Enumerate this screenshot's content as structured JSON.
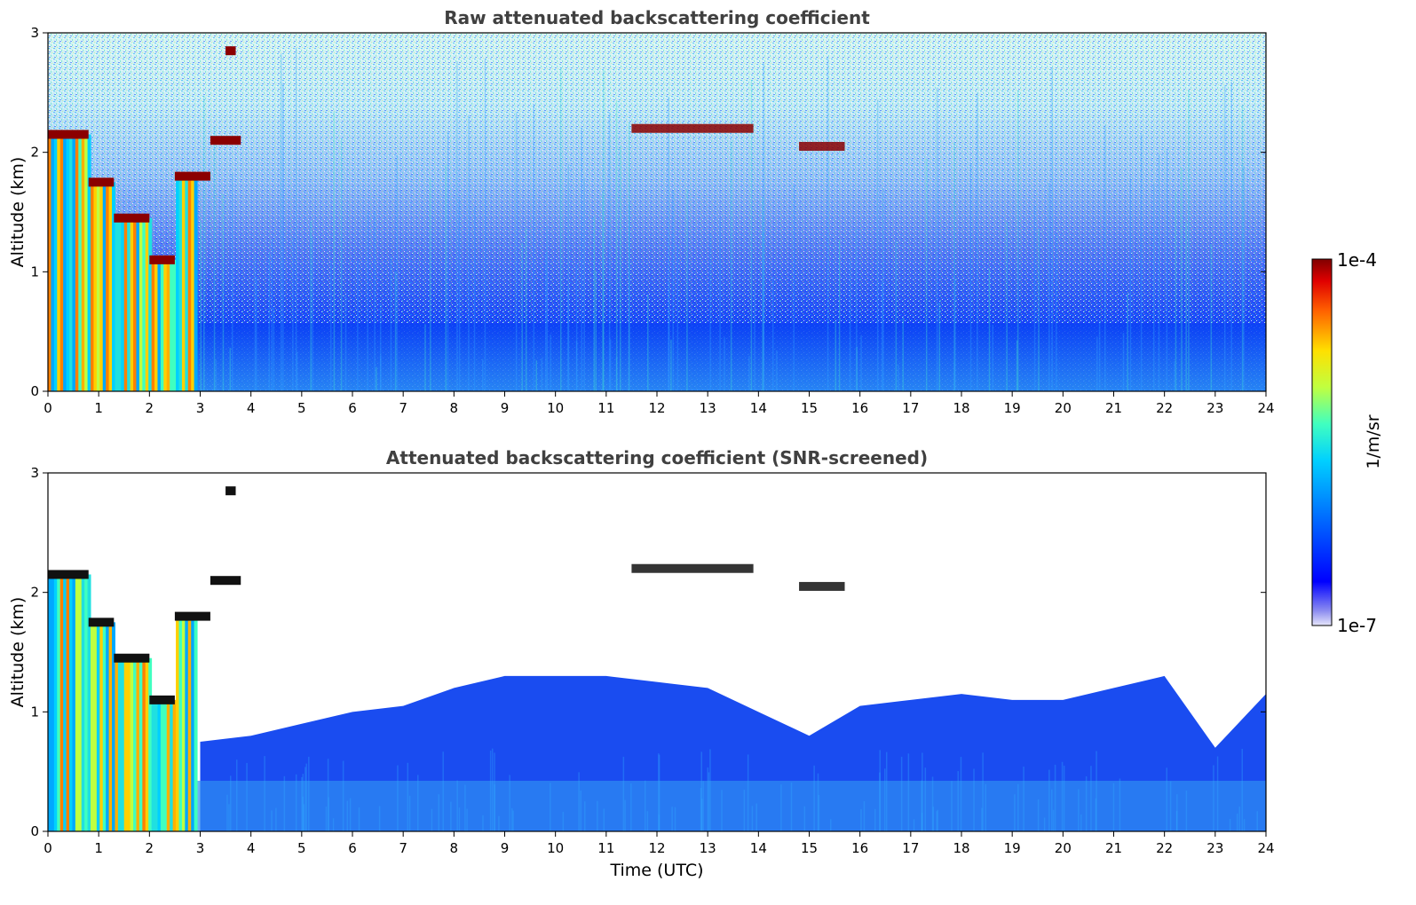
{
  "chart_data": [
    {
      "type": "heatmap",
      "title": "Raw attenuated backscattering coefficient",
      "xlabel": "",
      "ylabel": "Altitude (km)",
      "xlim": [
        0,
        24
      ],
      "ylim": [
        0,
        3
      ],
      "x_ticks": [
        "0",
        "1",
        "2",
        "3",
        "4",
        "5",
        "6",
        "7",
        "8",
        "9",
        "10",
        "11",
        "12",
        "13",
        "14",
        "15",
        "16",
        "17",
        "18",
        "19",
        "20",
        "21",
        "22",
        "23",
        "24"
      ],
      "y_ticks": [
        "0",
        "1",
        "2",
        "3"
      ],
      "value_scale": "log",
      "value_range": [
        "1e-7",
        "1e-4"
      ],
      "cloud_layers": [
        {
          "x_start": 0.0,
          "x_end": 0.8,
          "altitude_km": 2.15
        },
        {
          "x_start": 0.8,
          "x_end": 1.3,
          "altitude_km": 1.75
        },
        {
          "x_start": 1.3,
          "x_end": 2.0,
          "altitude_km": 1.45
        },
        {
          "x_start": 2.0,
          "x_end": 2.5,
          "altitude_km": 1.1
        },
        {
          "x_start": 2.5,
          "x_end": 3.2,
          "altitude_km": 1.8
        },
        {
          "x_start": 3.2,
          "x_end": 3.8,
          "altitude_km": 2.1
        },
        {
          "x_start": 3.5,
          "x_end": 3.7,
          "altitude_km": 2.85
        },
        {
          "x_start": 11.5,
          "x_end": 13.9,
          "altitude_km": 2.2
        },
        {
          "x_start": 14.8,
          "x_end": 15.7,
          "altitude_km": 2.05
        }
      ]
    },
    {
      "type": "heatmap",
      "title": "Attenuated backscattering coefficient (SNR-screened)",
      "xlabel": "Time (UTC)",
      "ylabel": "Altitude (km)",
      "xlim": [
        0,
        24
      ],
      "ylim": [
        0,
        3
      ],
      "x_ticks": [
        "0",
        "1",
        "2",
        "3",
        "4",
        "5",
        "6",
        "7",
        "8",
        "9",
        "10",
        "11",
        "12",
        "13",
        "14",
        "15",
        "16",
        "17",
        "18",
        "19",
        "20",
        "21",
        "22",
        "23",
        "24"
      ],
      "y_ticks": [
        "0",
        "1",
        "2",
        "3"
      ],
      "value_scale": "log",
      "value_range": [
        "1e-7",
        "1e-4"
      ],
      "screened_top_km": {
        "time_utc": [
          3,
          4,
          5,
          6,
          7,
          8,
          9,
          10,
          11,
          12,
          13,
          14,
          15,
          16,
          17,
          18,
          19,
          20,
          21,
          22,
          23,
          24
        ],
        "altitude_km": [
          0.75,
          0.8,
          0.9,
          1.0,
          1.05,
          1.2,
          1.3,
          1.3,
          1.3,
          1.25,
          1.2,
          1.0,
          0.8,
          1.05,
          1.1,
          1.15,
          1.1,
          1.1,
          1.2,
          1.3,
          0.7,
          1.15
        ]
      }
    }
  ],
  "colorbar": {
    "label": "1/m/sr",
    "max_label": "1e-4",
    "min_label": "1e-7"
  }
}
